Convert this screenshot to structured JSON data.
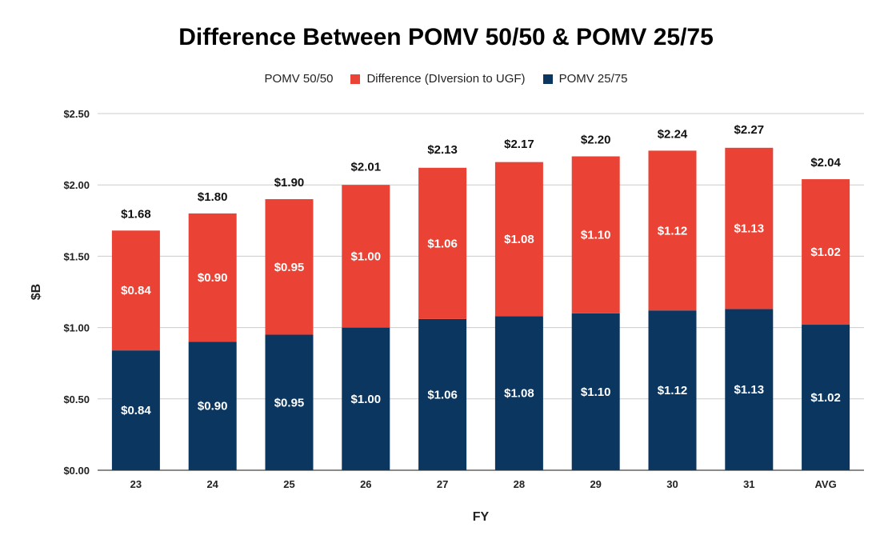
{
  "chart_data": {
    "type": "bar",
    "stacked": true,
    "title": "Difference Between POMV 50/50 & POMV 25/75",
    "xlabel": "FY",
    "ylabel": "$B",
    "ylim": [
      0,
      2.5
    ],
    "yticks": [
      "$0.00",
      "$0.50",
      "$1.00",
      "$1.50",
      "$2.00",
      "$2.50"
    ],
    "ytick_values": [
      0,
      0.5,
      1.0,
      1.5,
      2.0,
      2.5
    ],
    "grid": true,
    "legend_position": "top",
    "categories": [
      "23",
      "24",
      "25",
      "26",
      "27",
      "28",
      "29",
      "30",
      "31",
      "AVG"
    ],
    "series": [
      {
        "name": "POMV 25/75",
        "color": "#0b3660",
        "values": [
          0.84,
          0.9,
          0.95,
          1.0,
          1.06,
          1.08,
          1.1,
          1.12,
          1.13,
          1.02
        ],
        "labels": [
          "$0.84",
          "$0.90",
          "$0.95",
          "$1.00",
          "$1.06",
          "$1.08",
          "$1.10",
          "$1.12",
          "$1.13",
          "$1.02"
        ]
      },
      {
        "name": "Difference (DIversion to UGF)",
        "color": "#ea4335",
        "values": [
          0.84,
          0.9,
          0.95,
          1.0,
          1.06,
          1.08,
          1.1,
          1.12,
          1.13,
          1.02
        ],
        "labels": [
          "$0.84",
          "$0.90",
          "$0.95",
          "$1.00",
          "$1.06",
          "$1.08",
          "$1.10",
          "$1.12",
          "$1.13",
          "$1.02"
        ]
      }
    ],
    "totals_series": {
      "name": "POMV 50/50",
      "values": [
        1.68,
        1.8,
        1.9,
        2.01,
        2.13,
        2.17,
        2.2,
        2.24,
        2.27,
        2.04
      ],
      "labels": [
        "$1.68",
        "$1.80",
        "$1.90",
        "$2.01",
        "$2.13",
        "$2.17",
        "$2.20",
        "$2.24",
        "$2.27",
        "$2.04"
      ]
    },
    "legend": [
      {
        "label": "POMV 50/50",
        "color": ""
      },
      {
        "label": "Difference (DIversion to UGF)",
        "color": "#ea4335"
      },
      {
        "label": "POMV 25/75",
        "color": "#0b3660"
      }
    ]
  }
}
